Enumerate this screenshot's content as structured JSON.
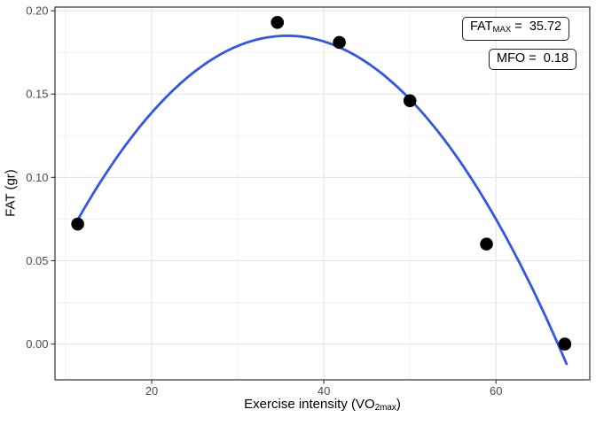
{
  "figure": {
    "background": "#FFFFFF"
  },
  "chart_data": {
    "type": "scatter",
    "title": "",
    "xlabel": {
      "main": "Exercise intensity (VO",
      "sub": "2max",
      "end": ")"
    },
    "ylabel": "FAT (gr)",
    "x_axis": {
      "range": [
        8.76,
        70.9
      ],
      "ticks": [
        {
          "value": 20,
          "label": "20"
        },
        {
          "value": 40,
          "label": "40"
        },
        {
          "value": 60,
          "label": "60"
        }
      ],
      "minor": [
        10,
        30,
        50,
        70
      ]
    },
    "y_axis": {
      "range": [
        -0.0215,
        0.2022
      ],
      "ticks": [
        {
          "value": 0.0,
          "label": "0.00"
        },
        {
          "value": 0.05,
          "label": "0.05"
        },
        {
          "value": 0.1,
          "label": "0.10"
        },
        {
          "value": 0.15,
          "label": "0.15"
        },
        {
          "value": 0.2,
          "label": "0.20"
        }
      ],
      "minor": [
        0.025,
        0.075,
        0.125,
        0.175
      ]
    },
    "points": [
      {
        "x": 11.4,
        "y": 0.072
      },
      {
        "x": 34.6,
        "y": 0.193
      },
      {
        "x": 41.8,
        "y": 0.181
      },
      {
        "x": 50.0,
        "y": 0.146
      },
      {
        "x": 58.9,
        "y": 0.06
      },
      {
        "x": 68.0,
        "y": 0.0
      }
    ],
    "point_style": {
      "color": "#000000",
      "radius": 7.3
    },
    "fit_curve": {
      "shape": "quadratic",
      "vertex_x": 35.72,
      "vertex_y": 0.185,
      "coeff_a": -0.0001867,
      "x_start": 11.45,
      "x_end": 68.2,
      "color": "#3355E8",
      "width": 2.8
    },
    "grid": {
      "major_color": "#E3E3E3",
      "minor_color": "#F0F0F0",
      "panel_border_color": "#333333",
      "tick_color": "#333333",
      "tick_label_color": "#4D4D4D"
    },
    "legend": "none",
    "annotations": [
      {
        "name": "fatmax",
        "label_main": "FAT",
        "label_sub": "MAX",
        "equals": " =  ",
        "value": "35.72"
      },
      {
        "name": "mfo",
        "label_main": "MFO",
        "label_sub": "",
        "equals": " =  ",
        "value": "0.18"
      }
    ]
  }
}
